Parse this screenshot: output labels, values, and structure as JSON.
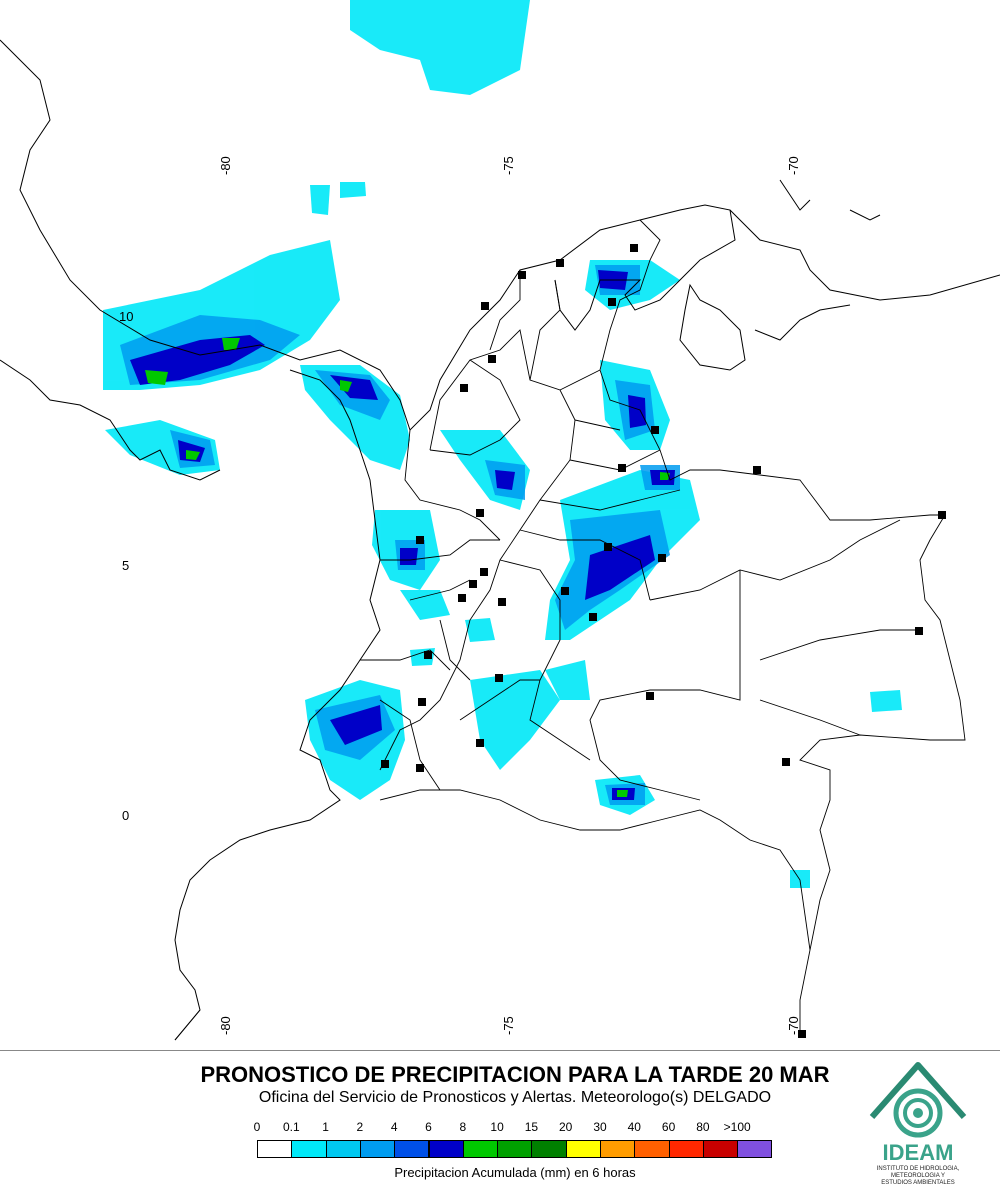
{
  "title": "PRONOSTICO DE PRECIPITACION PARA LA TARDE 20 MAR",
  "subtitle": "Oficina del Servicio de Pronosticos y Alertas. Meteorologo(s) DELGADO",
  "colorbar": {
    "ticks": [
      "0",
      "0.1",
      "1",
      "2",
      "4",
      "6",
      "8",
      "10",
      "15",
      "20",
      "30",
      "40",
      "60",
      "80",
      ">100"
    ],
    "colors": [
      "#ffffff",
      "#00e8f8",
      "#00c8f0",
      "#009cf0",
      "#0050e8",
      "#0000c8",
      "#00c800",
      "#00a000",
      "#008000",
      "#ffff00",
      "#ff9c00",
      "#ff6000",
      "#ff2800",
      "#c80000",
      "#8050e0"
    ],
    "label": "Precipitacion Acumulada (mm) en 6 horas"
  },
  "axes": {
    "lon_top": [
      "-80",
      "-75",
      "-70"
    ],
    "lon_bottom": [
      "-80",
      "-75",
      "-70"
    ],
    "lat": [
      "10",
      "5",
      "0"
    ]
  },
  "logo": {
    "name": "IDEAM",
    "subtitle_lines": [
      "INSTITUTO DE HIDROLOGIA,",
      "METEOROLOGIA Y",
      "ESTUDIOS AMBIENTALES"
    ]
  }
}
